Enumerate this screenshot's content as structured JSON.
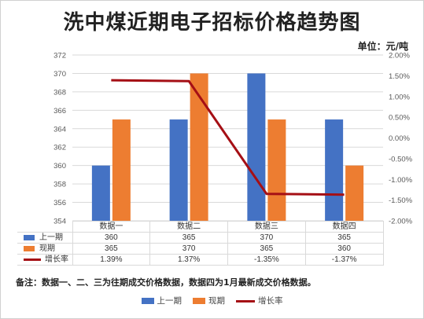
{
  "chart_data": {
    "type": "bar",
    "title": "洗中煤近期电子招标价格趋势图",
    "unit": "单位：元/吨",
    "categories": [
      "数据一",
      "数据二",
      "数据三",
      "数据四"
    ],
    "series": [
      {
        "name": "上一期",
        "type": "bar",
        "axis": "left",
        "values": [
          360,
          365,
          370,
          365
        ],
        "labels": [
          "360",
          "365",
          "370",
          "365"
        ],
        "color": "#4472C4"
      },
      {
        "name": "现期",
        "type": "bar",
        "axis": "left",
        "values": [
          365,
          370,
          365,
          360
        ],
        "labels": [
          "365",
          "370",
          "365",
          "360"
        ],
        "color": "#ED7D31"
      },
      {
        "name": "增长率",
        "type": "line",
        "axis": "right",
        "values": [
          1.39,
          1.37,
          -1.35,
          -1.37
        ],
        "labels": [
          "1.39%",
          "1.37%",
          "-1.35%",
          "-1.37%"
        ],
        "color": "#A50F15"
      }
    ],
    "ylim": [
      354,
      372
    ],
    "yticks": [
      "354",
      "356",
      "358",
      "360",
      "362",
      "364",
      "366",
      "368",
      "370",
      "372"
    ],
    "y2lim": [
      -2.0,
      2.0
    ],
    "y2ticks": [
      "-2.00%",
      "-1.50%",
      "-1.00%",
      "-0.50%",
      "0.00%",
      "0.50%",
      "1.00%",
      "1.50%",
      "2.00%"
    ],
    "grid": true,
    "legend_position": "bottom",
    "note": "备注：数据一、二、三为往期成交价格数据，数据四为1月最新成交价格数据。"
  }
}
